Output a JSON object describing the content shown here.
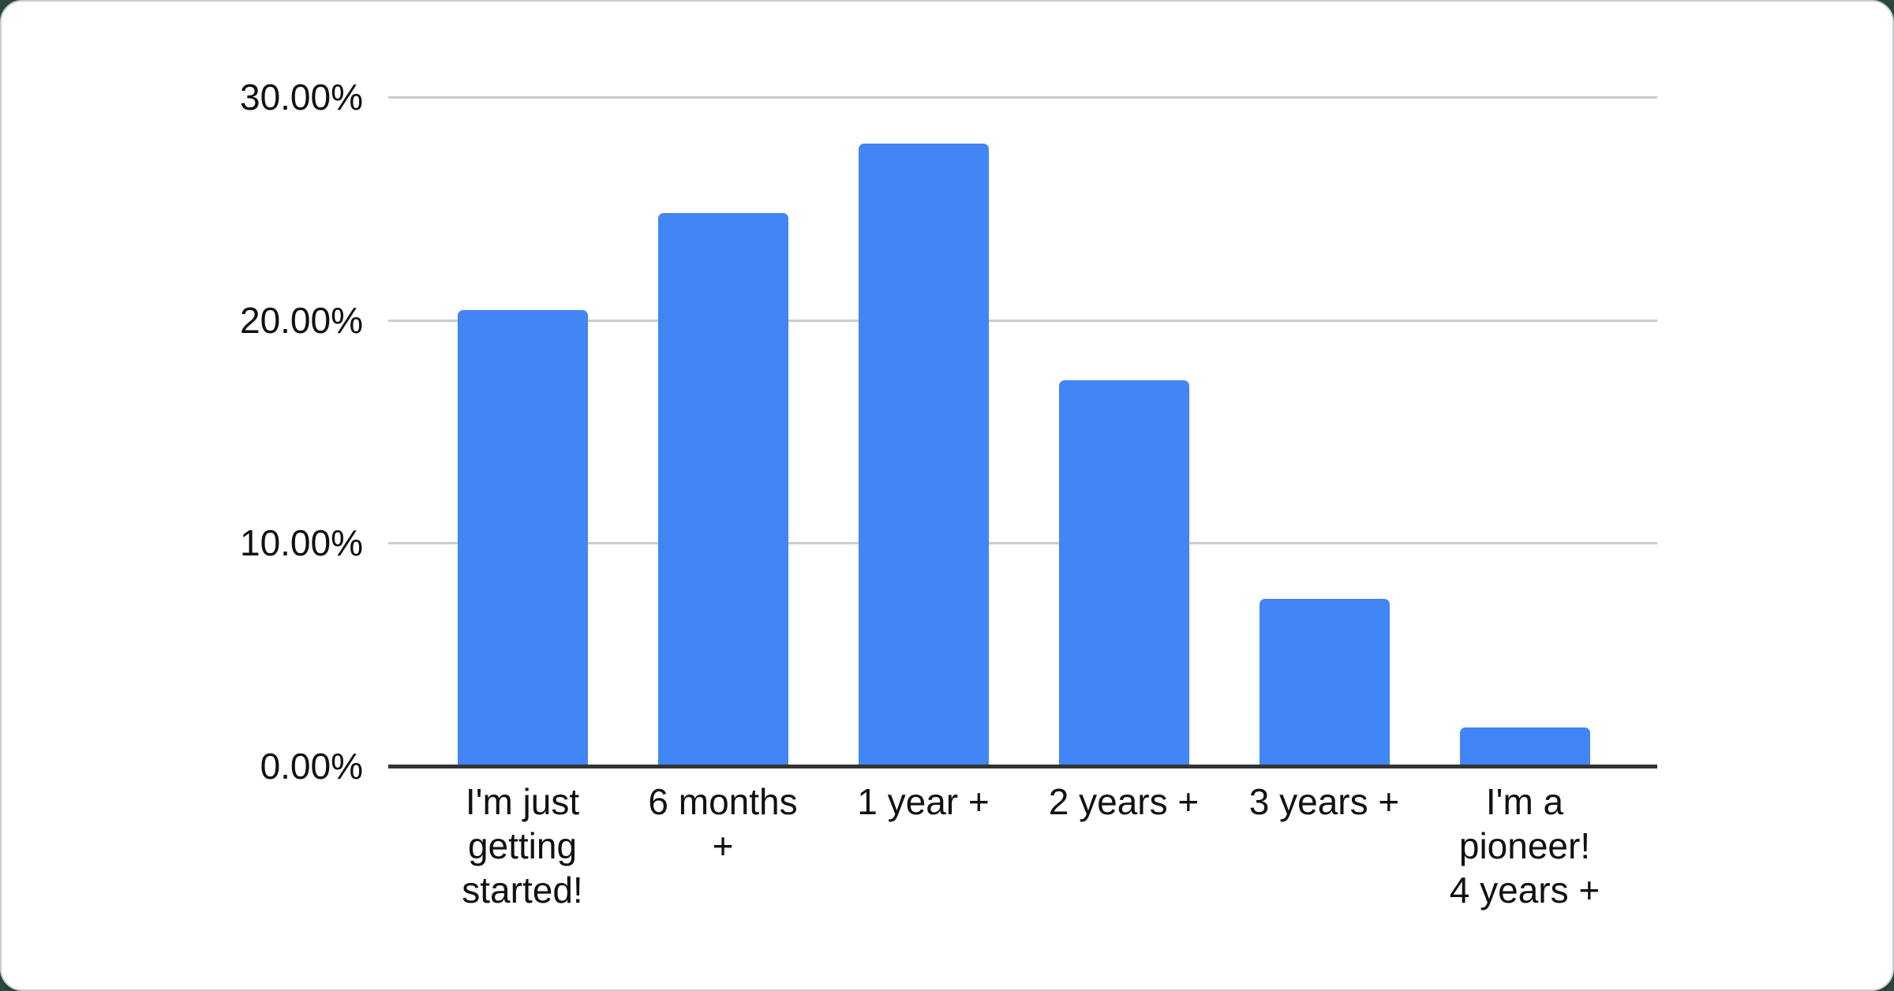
{
  "chart_data": {
    "type": "bar",
    "title": "",
    "xlabel": "",
    "ylabel": "",
    "categories": [
      "I'm just getting started!",
      "6 months +",
      "1 year +",
      "2 years +",
      "3 years +",
      "I'm a pioneer! 4 years +"
    ],
    "category_label_lines": [
      [
        "I'm just",
        "getting",
        "started!"
      ],
      [
        "6 months",
        "+"
      ],
      [
        "1 year +"
      ],
      [
        "2 years +"
      ],
      [
        "3 years +"
      ],
      [
        "I'm a",
        "pioneer!",
        "4 years +"
      ]
    ],
    "values": [
      20.45,
      24.8,
      27.9,
      17.3,
      7.5,
      1.75
    ],
    "unit": "%",
    "ylim": [
      0,
      30
    ],
    "y_ticks": [
      {
        "label": "30.00%",
        "value": 30
      },
      {
        "label": "20.00%",
        "value": 20
      },
      {
        "label": "10.00%",
        "value": 10
      },
      {
        "label": "0.00%",
        "value": 0
      }
    ],
    "grid": true,
    "legend_position": "none",
    "colors": {
      "bar": "#4285f4",
      "gridline": "#cccccc",
      "axis": "#333333",
      "tick_text": "#111111",
      "card_background": "#ffffff",
      "page_background": "#2b493a",
      "card_border": "#c7ced2"
    }
  }
}
